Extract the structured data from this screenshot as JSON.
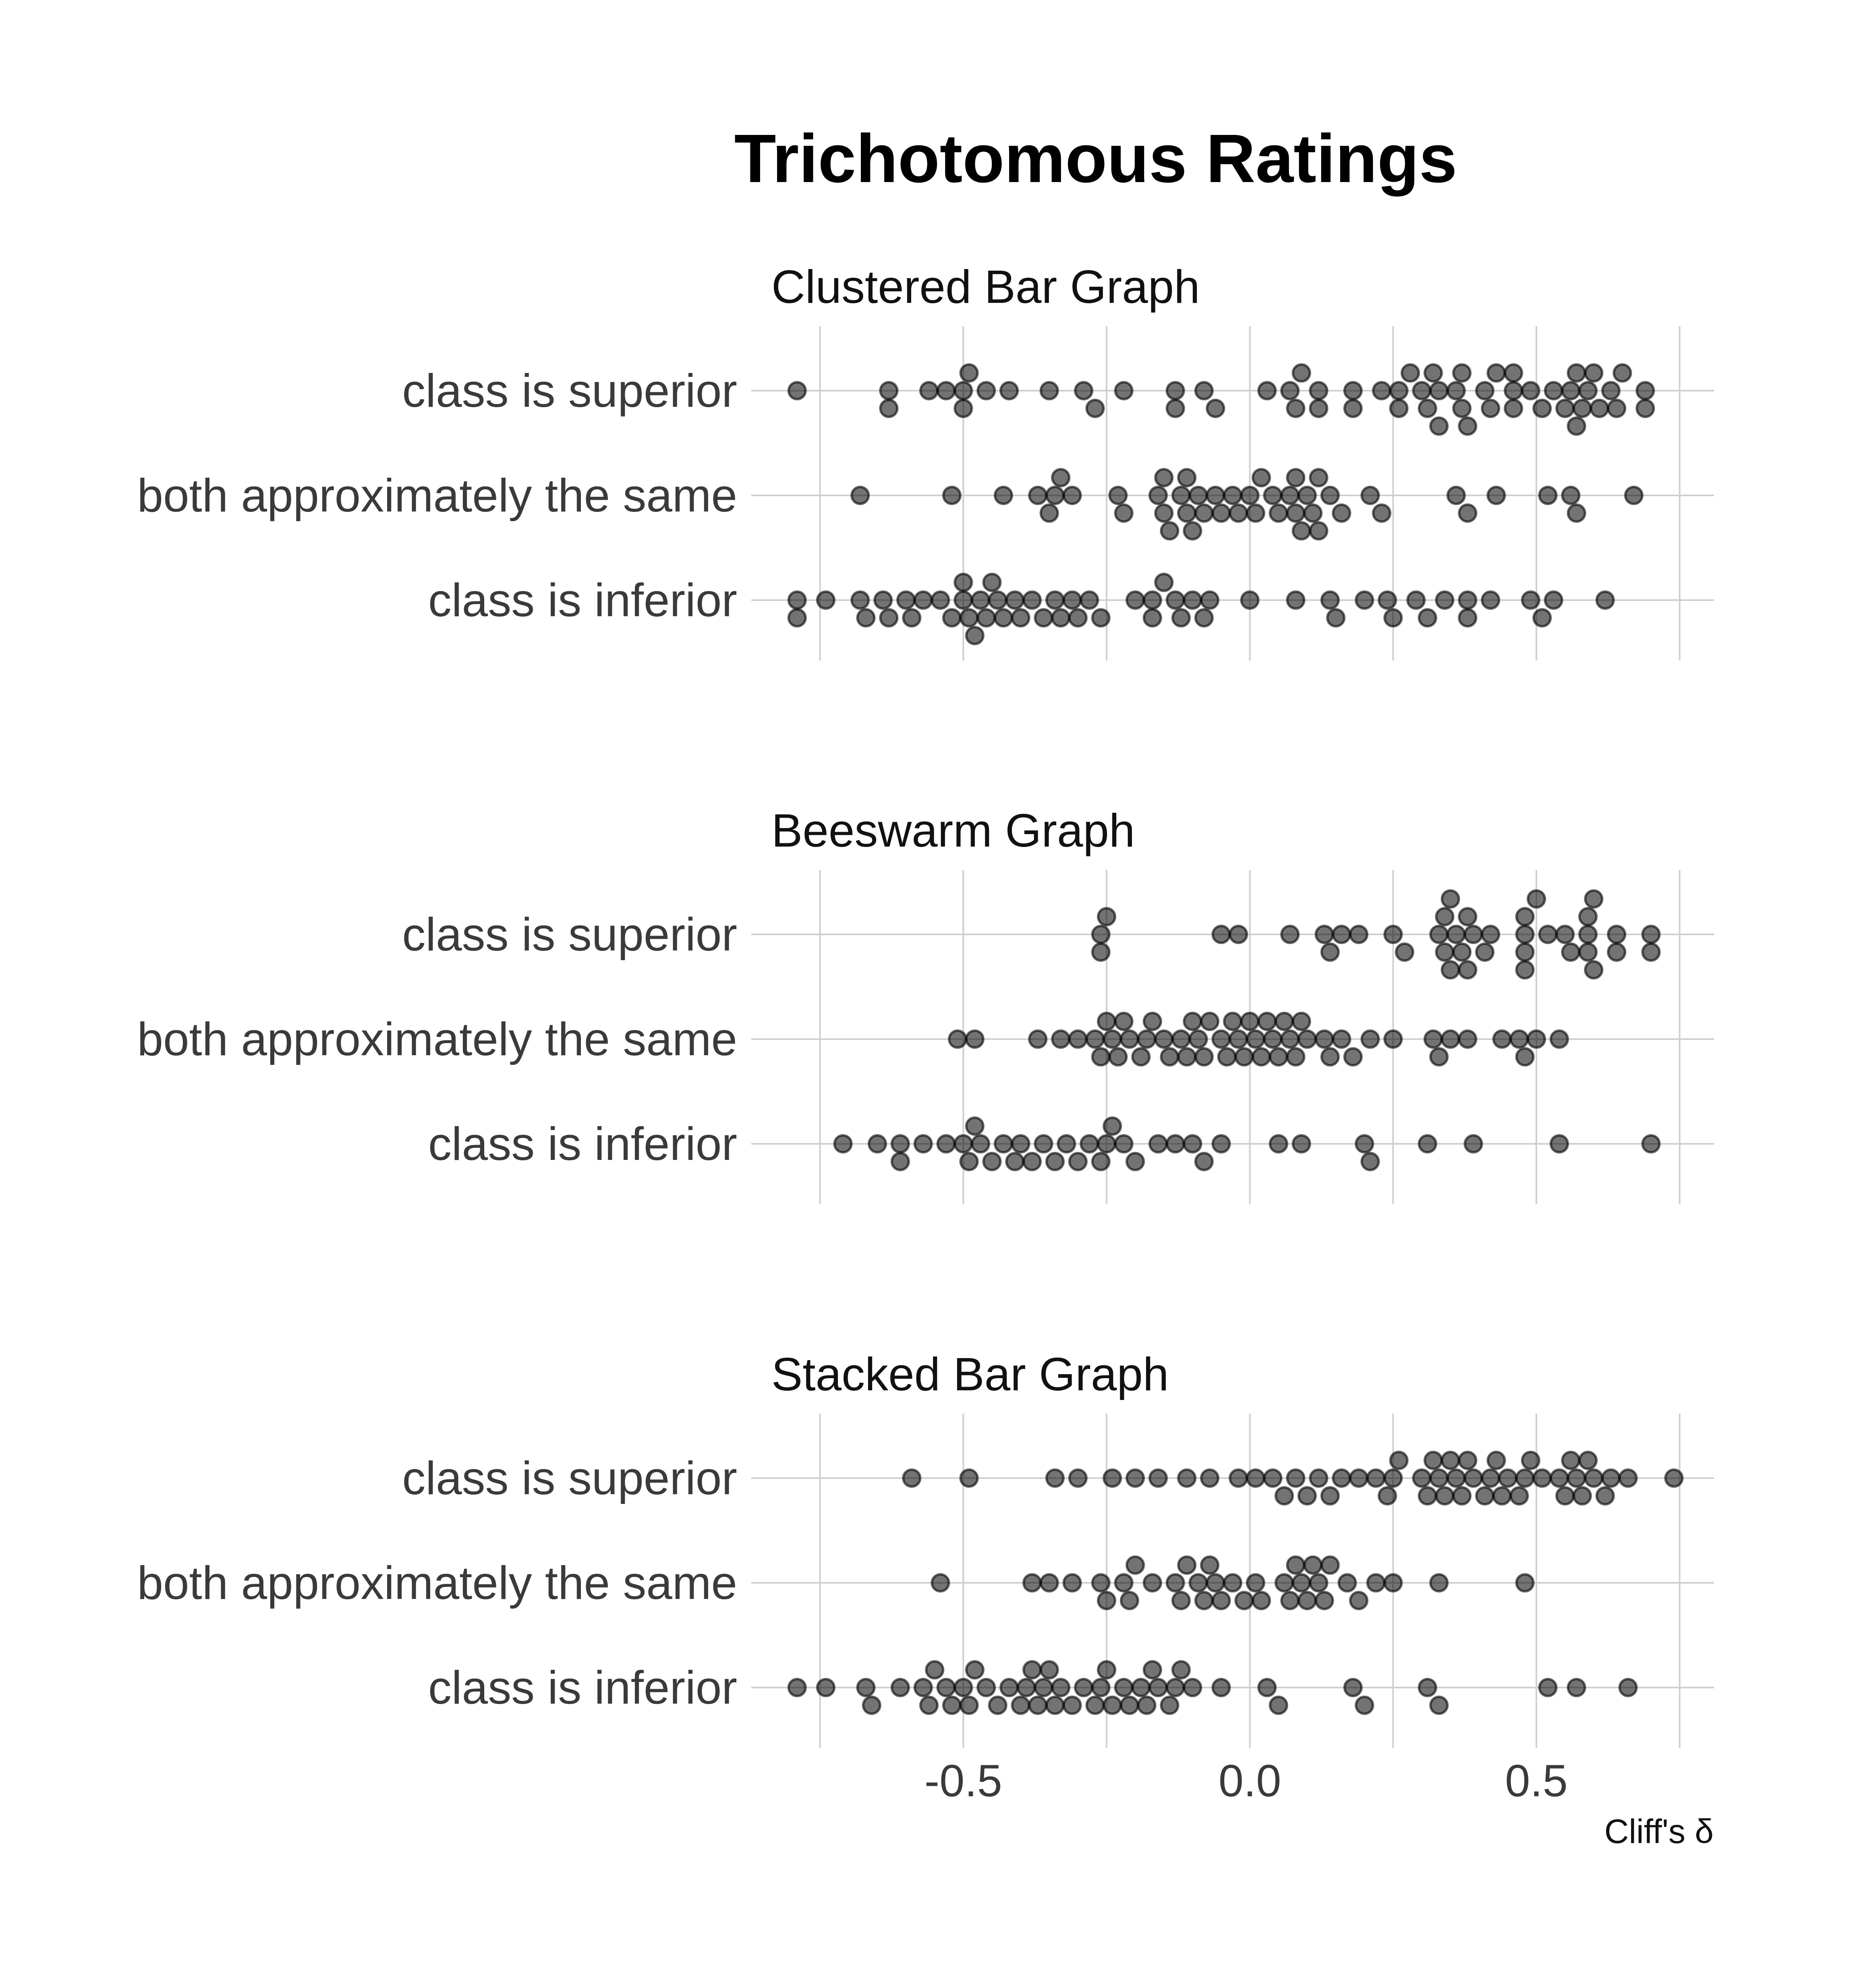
{
  "chart_data": {
    "type": "scatter",
    "subtype": "beeswarm",
    "title": "Trichotomous Ratings",
    "xlabel": "Cliff's δ",
    "xlim": [
      -0.87,
      0.81
    ],
    "xticks": [
      -0.5,
      0.0,
      0.5
    ],
    "xtick_labels": [
      "-0.5",
      "0.0",
      "0.5"
    ],
    "grid": true,
    "point_color": "#000000",
    "point_alpha": 0.6,
    "categories": [
      "class is superior",
      "both approximately the same",
      "class is inferior"
    ],
    "panels": [
      {
        "title": "Clustered Bar Graph",
        "series": [
          {
            "category": "class is superior",
            "x": [
              -0.79,
              -0.63,
              -0.63,
              -0.56,
              -0.53,
              -0.5,
              -0.49,
              -0.5,
              -0.46,
              -0.42,
              -0.35,
              -0.29,
              -0.27,
              -0.22,
              -0.13,
              -0.13,
              -0.08,
              -0.06,
              0.03,
              0.07,
              0.08,
              0.09,
              0.12,
              0.12,
              0.18,
              0.18,
              0.23,
              0.26,
              0.26,
              0.28,
              0.3,
              0.31,
              0.32,
              0.33,
              0.33,
              0.36,
              0.37,
              0.37,
              0.38,
              0.41,
              0.42,
              0.43,
              0.46,
              0.46,
              0.46,
              0.49,
              0.51,
              0.53,
              0.55,
              0.56,
              0.57,
              0.57,
              0.58,
              0.59,
              0.6,
              0.61,
              0.63,
              0.64,
              0.65,
              0.69,
              0.69
            ]
          },
          {
            "category": "both approximately the same",
            "x": [
              -0.68,
              -0.52,
              -0.43,
              -0.37,
              -0.35,
              -0.34,
              -0.33,
              -0.31,
              -0.23,
              -0.22,
              -0.16,
              -0.15,
              -0.15,
              -0.14,
              -0.12,
              -0.11,
              -0.11,
              -0.1,
              -0.09,
              -0.08,
              -0.06,
              -0.05,
              -0.03,
              -0.02,
              0.0,
              0.01,
              0.02,
              0.04,
              0.05,
              0.07,
              0.08,
              0.08,
              0.09,
              0.1,
              0.11,
              0.12,
              0.12,
              0.14,
              0.16,
              0.21,
              0.23,
              0.36,
              0.38,
              0.43,
              0.52,
              0.56,
              0.57,
              0.67
            ]
          },
          {
            "category": "class is inferior",
            "x": [
              -0.79,
              -0.79,
              -0.74,
              -0.68,
              -0.67,
              -0.64,
              -0.63,
              -0.6,
              -0.59,
              -0.57,
              -0.54,
              -0.52,
              -0.5,
              -0.5,
              -0.49,
              -0.48,
              -0.47,
              -0.46,
              -0.45,
              -0.44,
              -0.43,
              -0.41,
              -0.4,
              -0.38,
              -0.36,
              -0.34,
              -0.33,
              -0.31,
              -0.3,
              -0.28,
              -0.26,
              -0.2,
              -0.17,
              -0.17,
              -0.15,
              -0.13,
              -0.12,
              -0.1,
              -0.08,
              -0.07,
              0.0,
              0.08,
              0.14,
              0.15,
              0.2,
              0.24,
              0.25,
              0.29,
              0.31,
              0.34,
              0.38,
              0.38,
              0.42,
              0.49,
              0.51,
              0.53,
              0.62
            ]
          }
        ]
      },
      {
        "title": "Beeswarm Graph",
        "series": [
          {
            "category": "class is superior",
            "x": [
              -0.26,
              -0.26,
              -0.25,
              -0.05,
              -0.02,
              0.07,
              0.13,
              0.14,
              0.16,
              0.19,
              0.25,
              0.27,
              0.33,
              0.34,
              0.34,
              0.35,
              0.35,
              0.36,
              0.37,
              0.38,
              0.38,
              0.39,
              0.41,
              0.42,
              0.48,
              0.48,
              0.48,
              0.48,
              0.5,
              0.52,
              0.55,
              0.56,
              0.59,
              0.59,
              0.59,
              0.6,
              0.6,
              0.64,
              0.64,
              0.7,
              0.7
            ]
          },
          {
            "category": "both approximately the same",
            "x": [
              -0.51,
              -0.48,
              -0.37,
              -0.33,
              -0.3,
              -0.27,
              -0.26,
              -0.25,
              -0.24,
              -0.23,
              -0.22,
              -0.21,
              -0.19,
              -0.18,
              -0.17,
              -0.15,
              -0.14,
              -0.12,
              -0.11,
              -0.1,
              -0.09,
              -0.08,
              -0.07,
              -0.05,
              -0.04,
              -0.03,
              -0.02,
              -0.01,
              0.0,
              0.01,
              0.02,
              0.03,
              0.04,
              0.05,
              0.06,
              0.07,
              0.08,
              0.09,
              0.1,
              0.13,
              0.14,
              0.16,
              0.18,
              0.21,
              0.25,
              0.32,
              0.33,
              0.35,
              0.38,
              0.44,
              0.47,
              0.48,
              0.5,
              0.54
            ]
          },
          {
            "category": "class is inferior",
            "x": [
              -0.71,
              -0.65,
              -0.61,
              -0.61,
              -0.57,
              -0.53,
              -0.5,
              -0.49,
              -0.48,
              -0.47,
              -0.45,
              -0.43,
              -0.41,
              -0.4,
              -0.38,
              -0.36,
              -0.34,
              -0.32,
              -0.3,
              -0.28,
              -0.26,
              -0.25,
              -0.24,
              -0.22,
              -0.2,
              -0.16,
              -0.13,
              -0.1,
              -0.08,
              -0.05,
              0.05,
              0.09,
              0.2,
              0.21,
              0.31,
              0.39,
              0.54,
              0.7
            ]
          }
        ]
      },
      {
        "title": "Stacked Bar Graph",
        "series": [
          {
            "category": "class is superior",
            "x": [
              -0.59,
              -0.49,
              -0.34,
              -0.3,
              -0.24,
              -0.2,
              -0.16,
              -0.11,
              -0.07,
              -0.02,
              0.01,
              0.04,
              0.06,
              0.08,
              0.1,
              0.12,
              0.14,
              0.16,
              0.19,
              0.22,
              0.24,
              0.25,
              0.26,
              0.3,
              0.31,
              0.32,
              0.33,
              0.34,
              0.35,
              0.36,
              0.37,
              0.38,
              0.39,
              0.41,
              0.42,
              0.43,
              0.44,
              0.45,
              0.47,
              0.48,
              0.49,
              0.51,
              0.54,
              0.55,
              0.56,
              0.57,
              0.58,
              0.59,
              0.6,
              0.62,
              0.63,
              0.66,
              0.74
            ]
          },
          {
            "category": "both approximately the same",
            "x": [
              -0.54,
              -0.38,
              -0.35,
              -0.31,
              -0.26,
              -0.25,
              -0.22,
              -0.21,
              -0.2,
              -0.17,
              -0.13,
              -0.12,
              -0.11,
              -0.09,
              -0.08,
              -0.07,
              -0.06,
              -0.05,
              -0.03,
              -0.01,
              0.01,
              0.02,
              0.06,
              0.07,
              0.08,
              0.09,
              0.1,
              0.11,
              0.12,
              0.13,
              0.14,
              0.17,
              0.19,
              0.22,
              0.25,
              0.33,
              0.48
            ]
          },
          {
            "category": "class is inferior",
            "x": [
              -0.79,
              -0.74,
              -0.67,
              -0.66,
              -0.61,
              -0.57,
              -0.56,
              -0.55,
              -0.53,
              -0.52,
              -0.5,
              -0.49,
              -0.48,
              -0.46,
              -0.44,
              -0.42,
              -0.4,
              -0.39,
              -0.38,
              -0.37,
              -0.36,
              -0.35,
              -0.34,
              -0.33,
              -0.31,
              -0.29,
              -0.27,
              -0.26,
              -0.25,
              -0.24,
              -0.22,
              -0.21,
              -0.19,
              -0.18,
              -0.17,
              -0.16,
              -0.14,
              -0.13,
              -0.12,
              -0.1,
              -0.05,
              0.03,
              0.05,
              0.18,
              0.2,
              0.31,
              0.33,
              0.52,
              0.57,
              0.66
            ]
          }
        ]
      }
    ]
  }
}
